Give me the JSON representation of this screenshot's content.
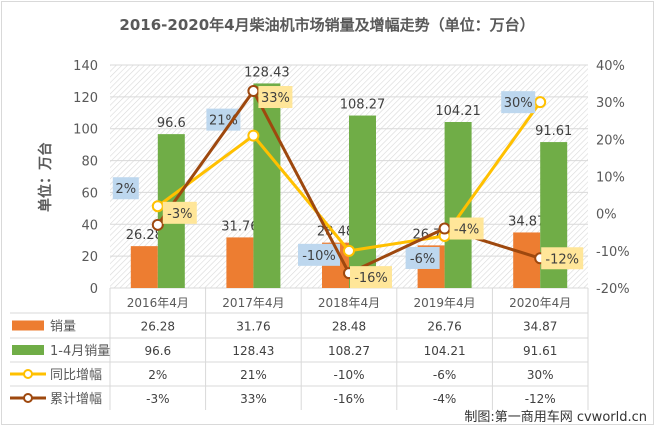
{
  "chart_data": {
    "type": "bar",
    "title": "2016-2020年4月柴油机市场销量及增幅走势（单位：万台）",
    "ylabel": "单位：万台",
    "categories": [
      "2016年4月",
      "2017年4月",
      "2018年4月",
      "2019年4月",
      "2020年4月"
    ],
    "ylim": [
      0,
      140
    ],
    "yticks": [
      "0",
      "20",
      "40",
      "60",
      "80",
      "100",
      "120",
      "140"
    ],
    "y2lim": [
      -20,
      40
    ],
    "y2ticks": [
      "-20%",
      "-10%",
      "0%",
      "10%",
      "20%",
      "30%",
      "40%"
    ],
    "grid": true,
    "legend": "bottom (data table)",
    "series": [
      {
        "name": "销量",
        "type": "bar",
        "color": "#ed7d31",
        "values": [
          26.28,
          31.76,
          28.48,
          26.76,
          34.87
        ],
        "labels": [
          "26.28",
          "31.76",
          "28.48",
          "26.76",
          "34.87"
        ]
      },
      {
        "name": "1-4月销量",
        "type": "bar",
        "color": "#70ad47",
        "values": [
          96.6,
          128.43,
          108.27,
          104.21,
          91.61
        ],
        "labels": [
          "96.6",
          "128.43",
          "108.27",
          "104.21",
          "91.61"
        ]
      },
      {
        "name": "同比增幅",
        "type": "line",
        "axis": "secondary",
        "color": "#ffc000",
        "label_bg": "#bdd7ee",
        "values": [
          2,
          21,
          -10,
          -6,
          30
        ],
        "labels": [
          "2%",
          "21%",
          "-10%",
          "-6%",
          "30%"
        ]
      },
      {
        "name": "累计增幅",
        "type": "line",
        "axis": "secondary",
        "color": "#9e480e",
        "label_bg": "#ffe699",
        "values": [
          -3,
          33,
          -16,
          -4,
          -12
        ],
        "labels": [
          "-3%",
          "33%",
          "-16%",
          "-4%",
          "-12%"
        ]
      }
    ]
  },
  "credit": "制图:第一商用车网 cvworld.cn"
}
